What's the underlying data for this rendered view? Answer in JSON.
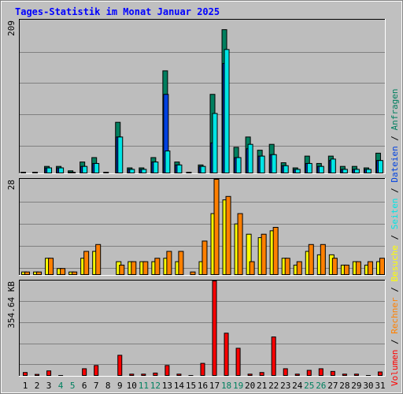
{
  "chart_data": [
    {
      "type": "bar",
      "title": "Tages-Statistik im Monat Januar 2025",
      "categories": [
        "1",
        "2",
        "3",
        "4",
        "5",
        "6",
        "7",
        "8",
        "9",
        "10",
        "11",
        "12",
        "13",
        "14",
        "15",
        "16",
        "17",
        "18",
        "19",
        "20",
        "21",
        "22",
        "23",
        "24",
        "25",
        "26",
        "27",
        "28",
        "29",
        "30",
        "31"
      ],
      "weekend_days": [
        "4",
        "5",
        "11",
        "12",
        "18",
        "19",
        "25",
        "26"
      ],
      "ymax_label": "209",
      "ylim": [
        0,
        209
      ],
      "series": [
        {
          "name": "Anfragen",
          "color": "#007f5f",
          "values": [
            2,
            2,
            10,
            10,
            4,
            16,
            22,
            2,
            70,
            8,
            8,
            22,
            140,
            16,
            2,
            12,
            108,
            196,
            36,
            50,
            32,
            40,
            15,
            8,
            24,
            14,
            24,
            10,
            10,
            8,
            28
          ]
        },
        {
          "name": "Dateien",
          "color": "#0041e0",
          "values": [
            1,
            1,
            8,
            8,
            2,
            10,
            14,
            1,
            50,
            6,
            6,
            16,
            108,
            12,
            1,
            10,
            42,
            150,
            22,
            34,
            24,
            26,
            11,
            6,
            14,
            10,
            18,
            6,
            6,
            6,
            18
          ]
        },
        {
          "name": "Seiten",
          "color": "#00e5e5",
          "values": [
            1,
            1,
            8,
            8,
            2,
            10,
            14,
            1,
            50,
            6,
            6,
            16,
            31,
            12,
            1,
            10,
            82,
            169,
            22,
            40,
            24,
            26,
            11,
            6,
            14,
            10,
            20,
            6,
            6,
            6,
            18
          ]
        }
      ]
    },
    {
      "type": "bar",
      "ymax_label": "28",
      "ylim": [
        0,
        28
      ],
      "series": [
        {
          "name": "Besuche",
          "color": "#ffff00",
          "values": [
            1,
            1,
            5,
            2,
            1,
            5,
            7,
            0,
            4,
            4,
            4,
            4,
            5,
            4,
            0,
            4,
            18,
            22,
            15,
            12,
            11,
            13,
            5,
            3,
            7,
            6,
            6,
            3,
            4,
            3,
            4
          ]
        },
        {
          "name": "Rechner",
          "color": "#ff8000",
          "values": [
            1,
            1,
            5,
            2,
            1,
            7,
            9,
            0,
            3,
            4,
            4,
            5,
            7,
            7,
            1,
            10,
            28,
            23,
            18,
            4,
            12,
            14,
            5,
            4,
            9,
            9,
            5,
            3,
            4,
            4,
            5
          ]
        }
      ]
    },
    {
      "type": "bar",
      "ymax_label": "354.64 KB",
      "series": [
        {
          "name": "Volumen",
          "color": "#ff0000",
          "values": [
            14,
            7,
            20,
            3,
            2,
            28,
            40,
            0,
            78,
            8,
            8,
            12,
            40,
            8,
            3,
            48,
            354,
            160,
            104,
            8,
            14,
            146,
            28,
            8,
            22,
            28,
            18,
            8,
            8,
            3,
            16
          ]
        }
      ]
    }
  ],
  "legend_order": [
    "Volumen",
    "Rechner",
    "Besuche",
    "Seiten",
    "Dateien",
    "Anfragen"
  ],
  "legend_separator": " / ",
  "colors": {
    "title": "#0000ff",
    "background": "#c0c0c0",
    "plot_background": "#bdbdbd",
    "gridline": "#808080",
    "weekday_label": "#000000",
    "weekend_label": "#00805f"
  }
}
